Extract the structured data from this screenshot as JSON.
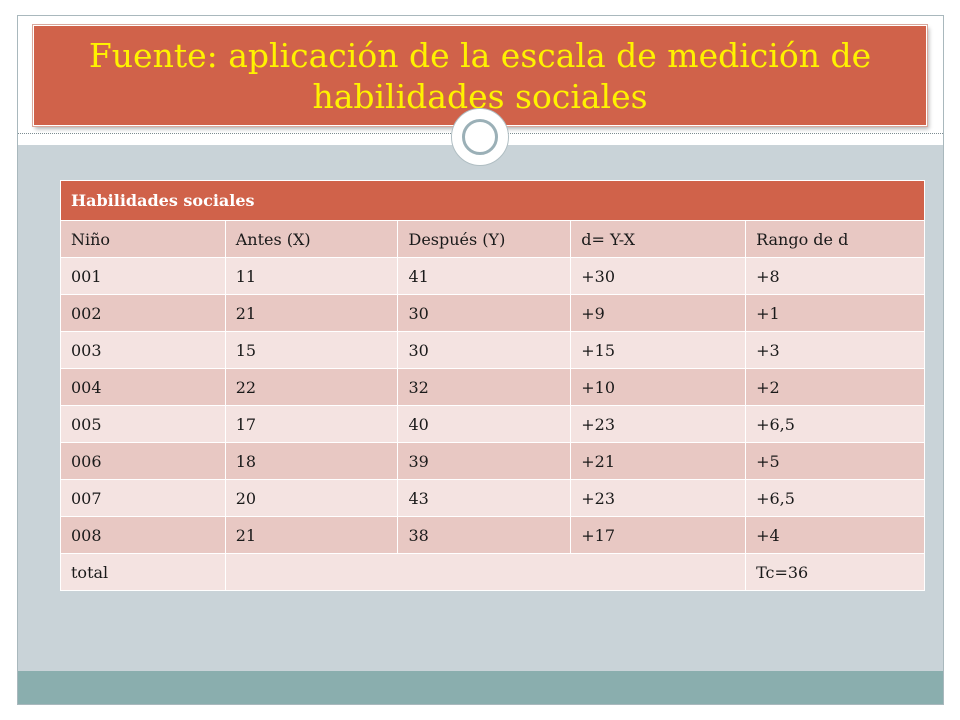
{
  "title": "Fuente: aplicación de la escala de medición de habilidades sociales",
  "table": {
    "caption": "Habilidades  sociales",
    "headers": [
      "Niño",
      "Antes (X)",
      "Después (Y)",
      "d= Y-X",
      "Rango de d"
    ],
    "rows": [
      [
        "001",
        "11",
        "41",
        "+30",
        "+8"
      ],
      [
        "002",
        "21",
        "30",
        "+9",
        "+1"
      ],
      [
        "003",
        "15",
        "30",
        "+15",
        "+3"
      ],
      [
        "004",
        "22",
        "32",
        "+10",
        "+2"
      ],
      [
        "005",
        "17",
        "40",
        "+23",
        "+6,5"
      ],
      [
        "006",
        "18",
        "39",
        "+21",
        "+5"
      ],
      [
        "007",
        "20",
        "43",
        "+23",
        "+6,5"
      ],
      [
        "008",
        "21",
        "38",
        "+17",
        "+4"
      ]
    ],
    "total_label": "total",
    "total_value": "Tc=36"
  },
  "colors": {
    "accent": "#d0624a",
    "title_text": "#fff200",
    "row_dark": "#e8c8c3",
    "row_light": "#f4e3e1",
    "background": "#c9d3d8",
    "footer": "#8aaeae"
  }
}
